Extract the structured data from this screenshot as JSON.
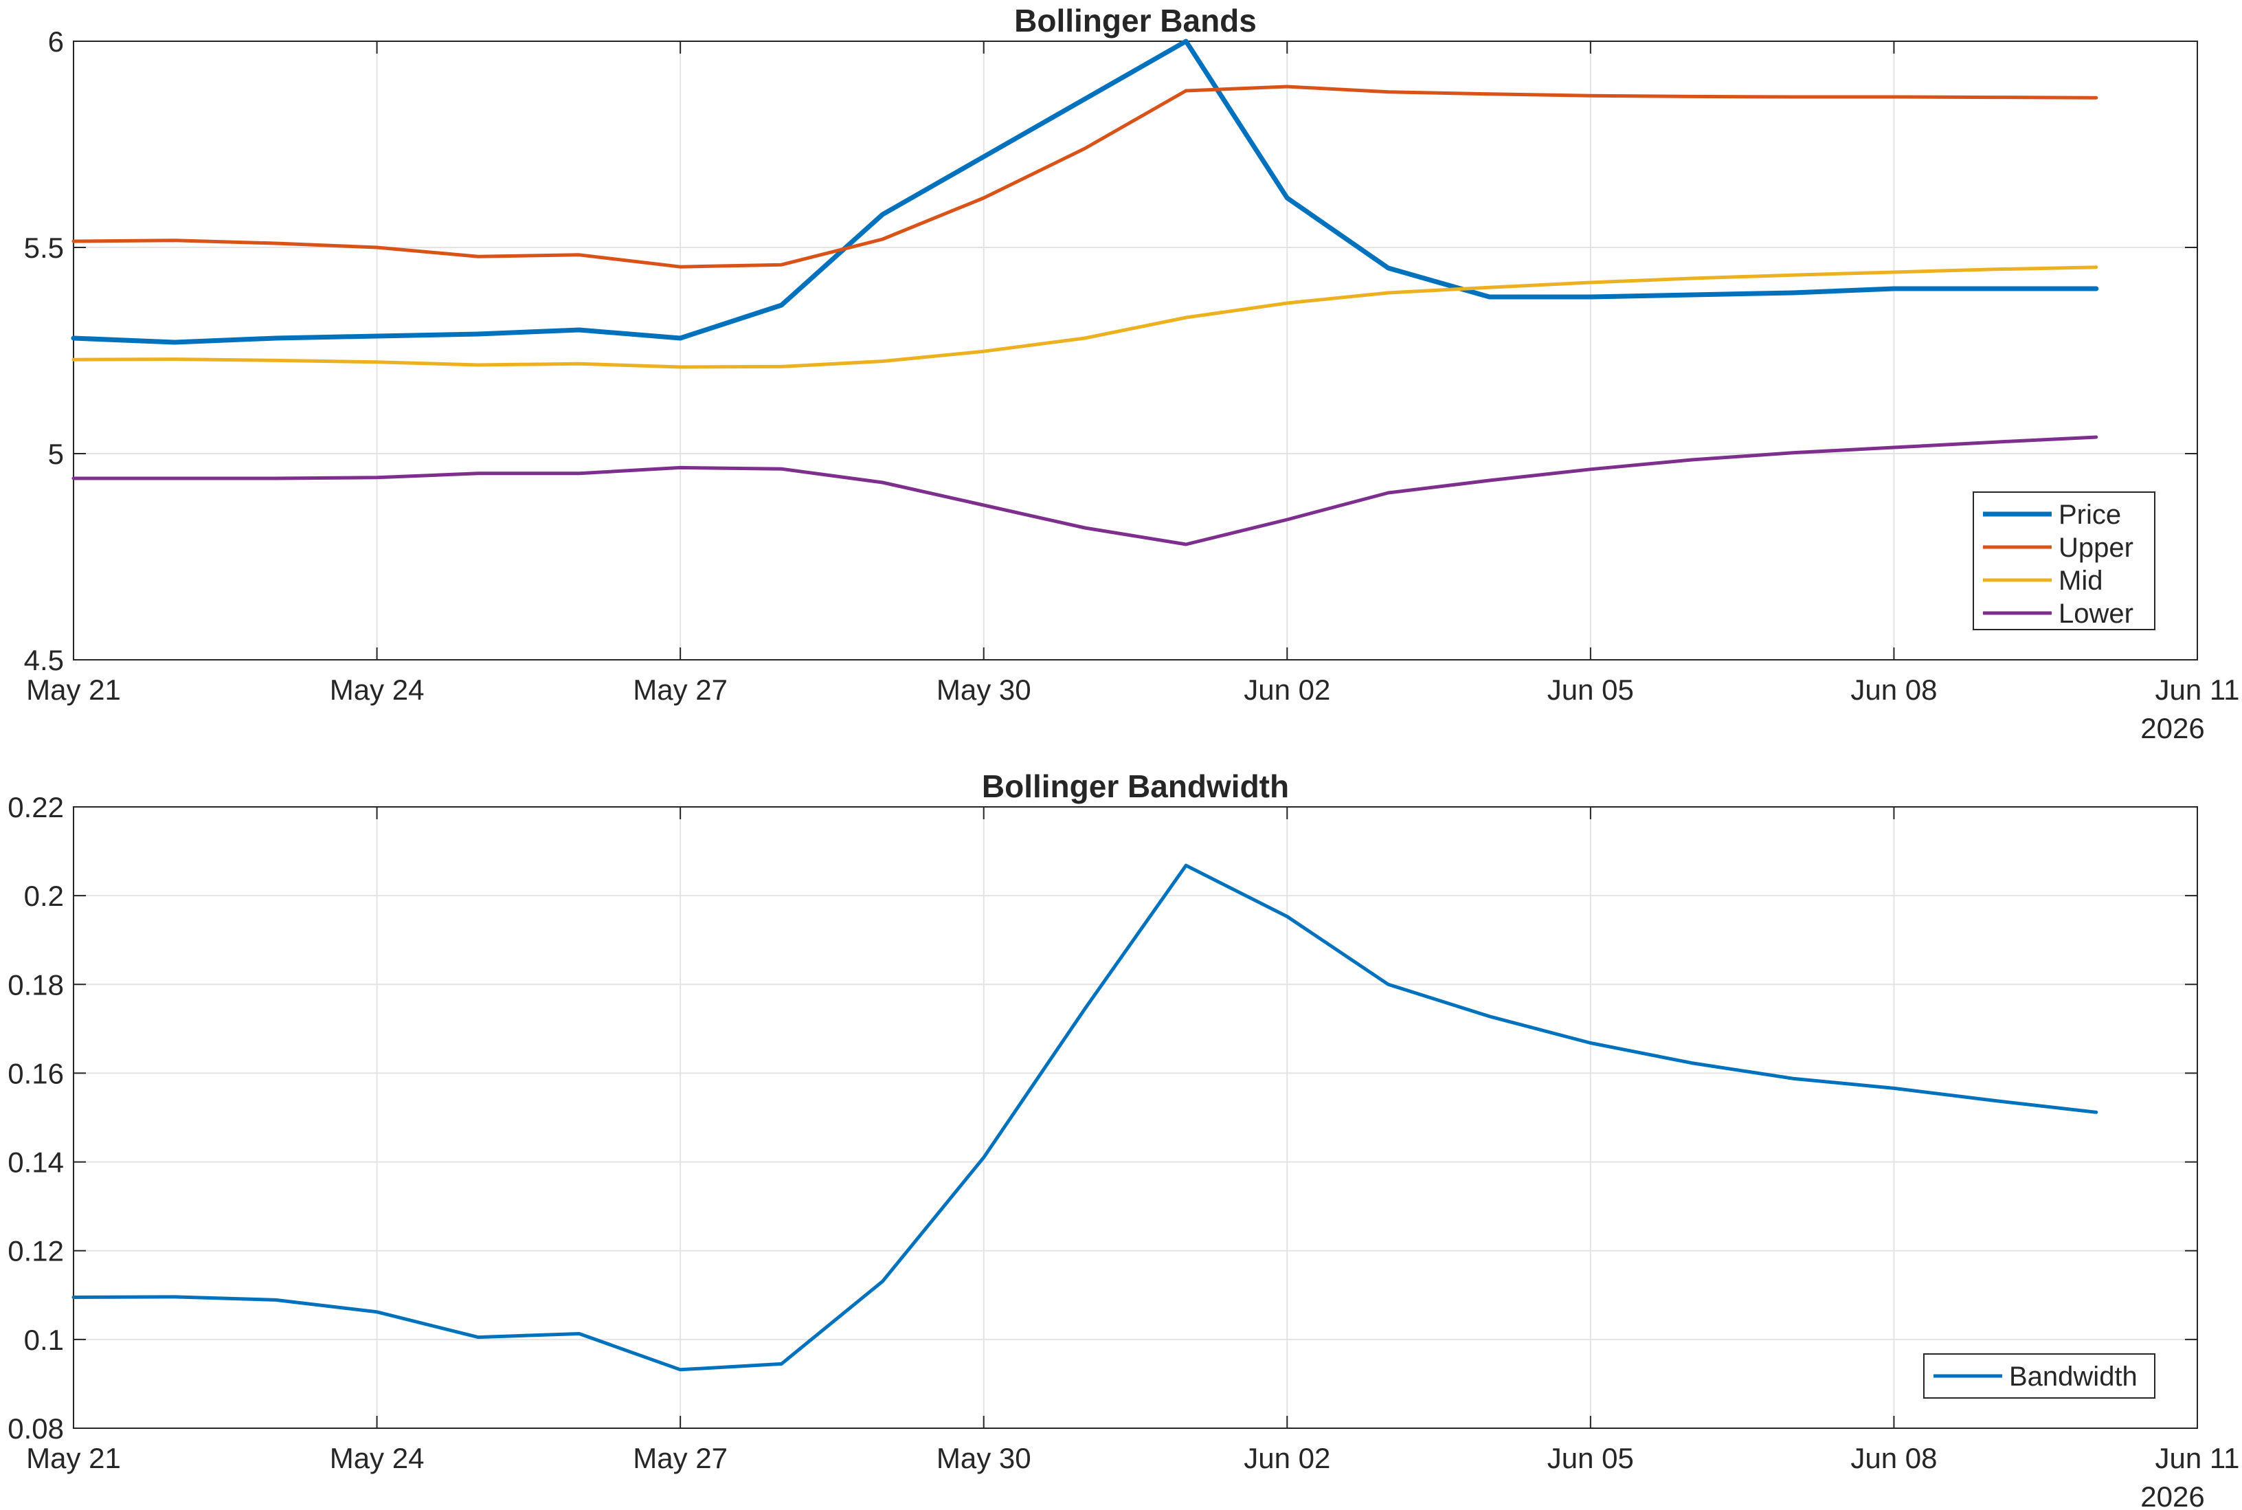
{
  "chart_data": [
    {
      "type": "line",
      "title": "Bollinger Bands",
      "xlabel": "",
      "ylabel": "",
      "x_axis_year": "2026",
      "xticks": [
        "May 21",
        "May 24",
        "May 27",
        "May 30",
        "Jun 02",
        "Jun 05",
        "Jun 08",
        "Jun 11"
      ],
      "yticks": [
        "4.5",
        "5",
        "5.5",
        "6"
      ],
      "ylim": [
        4.5,
        6
      ],
      "xlim": [
        "2026-05-21",
        "2026-06-11"
      ],
      "grid": true,
      "legend": "bottom-right",
      "x": [
        "2026-05-21",
        "2026-05-22",
        "2026-05-23",
        "2026-05-24",
        "2026-05-25",
        "2026-05-26",
        "2026-05-27",
        "2026-05-28",
        "2026-05-29",
        "2026-05-30",
        "2026-05-31",
        "2026-06-01",
        "2026-06-02",
        "2026-06-03",
        "2026-06-04",
        "2026-06-05",
        "2026-06-06",
        "2026-06-07",
        "2026-06-08",
        "2026-06-09",
        "2026-06-10"
      ],
      "series": [
        {
          "name": "Price",
          "color": "#0072BD",
          "width": 7,
          "values": [
            5.28,
            5.27,
            5.28,
            5.285,
            5.29,
            5.3,
            5.28,
            5.36,
            5.58,
            5.72,
            5.86,
            6.0,
            5.62,
            5.45,
            5.38,
            5.38,
            5.385,
            5.39,
            5.4,
            5.4,
            5.4
          ]
        },
        {
          "name": "Upper",
          "color": "#D95319",
          "width": 5,
          "values": [
            5.515,
            5.517,
            5.51,
            5.5,
            5.478,
            5.482,
            5.453,
            5.458,
            5.52,
            5.62,
            5.74,
            5.88,
            5.89,
            5.877,
            5.872,
            5.868,
            5.866,
            5.865,
            5.865,
            5.864,
            5.863
          ]
        },
        {
          "name": "Mid",
          "color": "#EDB120",
          "width": 5,
          "values": [
            5.228,
            5.229,
            5.226,
            5.222,
            5.215,
            5.218,
            5.21,
            5.211,
            5.224,
            5.248,
            5.28,
            5.33,
            5.365,
            5.39,
            5.403,
            5.415,
            5.425,
            5.433,
            5.44,
            5.447,
            5.452
          ]
        },
        {
          "name": "Lower",
          "color": "#7E2F8E",
          "width": 5,
          "values": [
            4.94,
            4.94,
            4.94,
            4.942,
            4.952,
            4.952,
            4.966,
            4.963,
            4.93,
            4.875,
            4.82,
            4.78,
            4.84,
            4.905,
            4.935,
            4.962,
            4.985,
            5.002,
            5.015,
            5.028,
            5.04
          ]
        }
      ]
    },
    {
      "type": "line",
      "title": "Bollinger Bandwidth",
      "xlabel": "",
      "ylabel": "",
      "x_axis_year": "2026",
      "xticks": [
        "May 21",
        "May 24",
        "May 27",
        "May 30",
        "Jun 02",
        "Jun 05",
        "Jun 08",
        "Jun 11"
      ],
      "yticks": [
        "0.08",
        "0.1",
        "0.12",
        "0.14",
        "0.16",
        "0.18",
        "0.2",
        "0.22"
      ],
      "ylim": [
        0.08,
        0.22
      ],
      "xlim": [
        "2026-05-21",
        "2026-06-11"
      ],
      "grid": true,
      "legend": "bottom-right",
      "x": [
        "2026-05-21",
        "2026-05-22",
        "2026-05-23",
        "2026-05-24",
        "2026-05-25",
        "2026-05-26",
        "2026-05-27",
        "2026-05-28",
        "2026-05-29",
        "2026-05-30",
        "2026-05-31",
        "2026-06-01",
        "2026-06-02",
        "2026-06-03",
        "2026-06-04",
        "2026-06-05",
        "2026-06-06",
        "2026-06-07",
        "2026-06-08",
        "2026-06-09",
        "2026-06-10"
      ],
      "series": [
        {
          "name": "Bandwidth",
          "color": "#0072BD",
          "width": 5,
          "values": [
            0.1095,
            0.1096,
            0.1089,
            0.1062,
            0.1005,
            0.1013,
            0.0932,
            0.0945,
            0.1131,
            0.141,
            0.1745,
            0.2068,
            0.1953,
            0.18,
            0.1728,
            0.1668,
            0.1623,
            0.1588,
            0.1566,
            0.1538,
            0.1512
          ]
        }
      ]
    }
  ]
}
